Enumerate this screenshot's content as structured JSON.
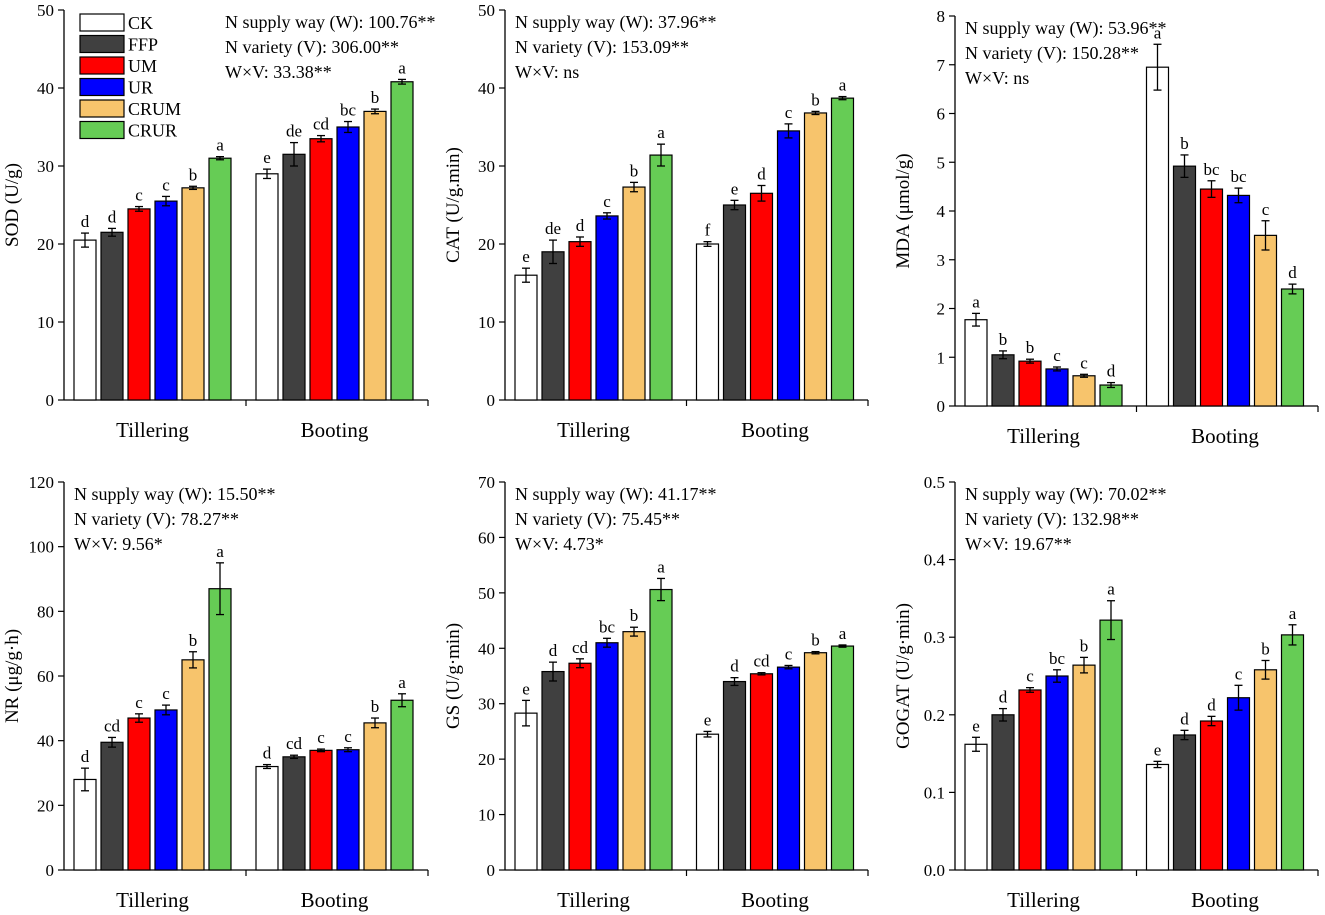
{
  "colors": {
    "CK": "#ffffff",
    "FFP": "#404040",
    "UM": "#ff0000",
    "UR": "#0000ff",
    "CRUM": "#f7c46c",
    "CRUR": "#66cc55"
  },
  "legend": [
    "CK",
    "FFP",
    "UM",
    "UR",
    "CRUM",
    "CRUR"
  ],
  "chart_data": [
    {
      "type": "bar",
      "id": "sod",
      "ylabel": "SOD (U/g)",
      "ylim": [
        0,
        50
      ],
      "yticks": [
        0,
        10,
        20,
        30,
        40,
        50
      ],
      "categories": [
        "Tillering",
        "Booting"
      ],
      "series": [
        {
          "name": "CK",
          "values": [
            20.5,
            29.0
          ],
          "errors": [
            0.9,
            0.6
          ],
          "letters": [
            "d",
            "e"
          ]
        },
        {
          "name": "FFP",
          "values": [
            21.5,
            31.5
          ],
          "errors": [
            0.5,
            1.5
          ],
          "letters": [
            "d",
            "de"
          ]
        },
        {
          "name": "UM",
          "values": [
            24.5,
            33.5
          ],
          "errors": [
            0.3,
            0.4
          ],
          "letters": [
            "c",
            "cd"
          ]
        },
        {
          "name": "UR",
          "values": [
            25.5,
            35.0
          ],
          "errors": [
            0.6,
            0.7
          ],
          "letters": [
            "c",
            "bc"
          ]
        },
        {
          "name": "CRUM",
          "values": [
            27.2,
            37.0
          ],
          "errors": [
            0.2,
            0.3
          ],
          "letters": [
            "b",
            "b"
          ]
        },
        {
          "name": "CRUR",
          "values": [
            31.0,
            40.8
          ],
          "errors": [
            0.2,
            0.3
          ],
          "letters": [
            "a",
            "a"
          ]
        }
      ],
      "stats": [
        "N supply way (W): 100.76**",
        "N variety (V): 306.00**",
        "W×V: 33.38**"
      ]
    },
    {
      "type": "bar",
      "id": "cat",
      "ylabel": "CAT (U/g.min)",
      "ylim": [
        0,
        50
      ],
      "yticks": [
        0,
        10,
        20,
        30,
        40,
        50
      ],
      "categories": [
        "Tillering",
        "Booting"
      ],
      "series": [
        {
          "name": "CK",
          "values": [
            16.0,
            20.0
          ],
          "errors": [
            0.9,
            0.3
          ],
          "letters": [
            "e",
            "f"
          ]
        },
        {
          "name": "FFP",
          "values": [
            19.0,
            25.0
          ],
          "errors": [
            1.5,
            0.6
          ],
          "letters": [
            "de",
            "e"
          ]
        },
        {
          "name": "UM",
          "values": [
            20.3,
            26.5
          ],
          "errors": [
            0.6,
            1.0
          ],
          "letters": [
            "d",
            "d"
          ]
        },
        {
          "name": "UR",
          "values": [
            23.6,
            34.5
          ],
          "errors": [
            0.4,
            0.9
          ],
          "letters": [
            "c",
            "c"
          ]
        },
        {
          "name": "CRUM",
          "values": [
            27.3,
            36.8
          ],
          "errors": [
            0.6,
            0.2
          ],
          "letters": [
            "b",
            "b"
          ]
        },
        {
          "name": "CRUR",
          "values": [
            31.4,
            38.7
          ],
          "errors": [
            1.4,
            0.2
          ],
          "letters": [
            "a",
            "a"
          ]
        }
      ],
      "stats": [
        "N supply way (W): 37.96**",
        "N variety (V): 153.09**",
        "W×V: ns"
      ]
    },
    {
      "type": "bar",
      "id": "mda",
      "ylabel": "MDA (μmol/g)",
      "ylim": [
        0,
        8
      ],
      "yticks": [
        0,
        1,
        2,
        3,
        4,
        5,
        6,
        7,
        8
      ],
      "categories": [
        "Tillering",
        "Booting"
      ],
      "series": [
        {
          "name": "CK",
          "values": [
            1.77,
            6.95
          ],
          "errors": [
            0.13,
            0.47
          ],
          "letters": [
            "a",
            "a"
          ]
        },
        {
          "name": "FFP",
          "values": [
            1.05,
            4.92
          ],
          "errors": [
            0.08,
            0.23
          ],
          "letters": [
            "b",
            "b"
          ]
        },
        {
          "name": "UM",
          "values": [
            0.92,
            4.45
          ],
          "errors": [
            0.04,
            0.17
          ],
          "letters": [
            "b",
            "bc"
          ]
        },
        {
          "name": "UR",
          "values": [
            0.76,
            4.32
          ],
          "errors": [
            0.04,
            0.15
          ],
          "letters": [
            "c",
            "bc"
          ]
        },
        {
          "name": "CRUM",
          "values": [
            0.62,
            3.5
          ],
          "errors": [
            0.03,
            0.3
          ],
          "letters": [
            "c",
            "c"
          ]
        },
        {
          "name": "CRUR",
          "values": [
            0.43,
            2.4
          ],
          "errors": [
            0.05,
            0.1
          ],
          "letters": [
            "d",
            "d"
          ]
        }
      ],
      "stats": [
        "N supply way (W): 53.96**",
        "N variety (V): 150.28**",
        "W×V: ns"
      ]
    },
    {
      "type": "bar",
      "id": "nr",
      "ylabel": "NR (μg/g·h)",
      "ylim": [
        0,
        120
      ],
      "yticks": [
        0,
        20,
        40,
        60,
        80,
        100,
        120
      ],
      "categories": [
        "Tillering",
        "Booting"
      ],
      "series": [
        {
          "name": "CK",
          "values": [
            28.0,
            32.0
          ],
          "errors": [
            3.5,
            0.6
          ],
          "letters": [
            "d",
            "d"
          ]
        },
        {
          "name": "FFP",
          "values": [
            39.5,
            35.0
          ],
          "errors": [
            1.5,
            0.5
          ],
          "letters": [
            "cd",
            "cd"
          ]
        },
        {
          "name": "UM",
          "values": [
            47.0,
            37.0
          ],
          "errors": [
            1.3,
            0.4
          ],
          "letters": [
            "c",
            "c"
          ]
        },
        {
          "name": "UR",
          "values": [
            49.5,
            37.2
          ],
          "errors": [
            1.5,
            0.6
          ],
          "letters": [
            "c",
            "c"
          ]
        },
        {
          "name": "CRUM",
          "values": [
            65.0,
            45.5
          ],
          "errors": [
            2.5,
            1.5
          ],
          "letters": [
            "b",
            "b"
          ]
        },
        {
          "name": "CRUR",
          "values": [
            87.0,
            52.5
          ],
          "errors": [
            8.0,
            2.0
          ],
          "letters": [
            "a",
            "a"
          ]
        }
      ],
      "stats": [
        "N supply way (W): 15.50**",
        "N variety (V): 78.27**",
        "W×V: 9.56*"
      ]
    },
    {
      "type": "bar",
      "id": "gs",
      "ylabel": "GS (U/g·min)",
      "ylim": [
        0,
        70
      ],
      "yticks": [
        0,
        10,
        20,
        30,
        40,
        50,
        60,
        70
      ],
      "categories": [
        "Tillering",
        "Booting"
      ],
      "series": [
        {
          "name": "CK",
          "values": [
            28.3,
            24.5
          ],
          "errors": [
            2.3,
            0.5
          ],
          "letters": [
            "e",
            "e"
          ]
        },
        {
          "name": "FFP",
          "values": [
            35.8,
            34.0
          ],
          "errors": [
            1.7,
            0.7
          ],
          "letters": [
            "d",
            "d"
          ]
        },
        {
          "name": "UM",
          "values": [
            37.3,
            35.4
          ],
          "errors": [
            0.8,
            0.2
          ],
          "letters": [
            "cd",
            "cd"
          ]
        },
        {
          "name": "UR",
          "values": [
            41.0,
            36.6
          ],
          "errors": [
            0.8,
            0.3
          ],
          "letters": [
            "bc",
            "c"
          ]
        },
        {
          "name": "CRUM",
          "values": [
            43.0,
            39.2
          ],
          "errors": [
            0.8,
            0.2
          ],
          "letters": [
            "b",
            "b"
          ]
        },
        {
          "name": "CRUR",
          "values": [
            50.6,
            40.4
          ],
          "errors": [
            2.0,
            0.2
          ],
          "letters": [
            "a",
            "a"
          ]
        }
      ],
      "stats": [
        "N supply way (W): 41.17**",
        "N variety (V): 75.45**",
        "W×V: 4.73*"
      ]
    },
    {
      "type": "bar",
      "id": "gogat",
      "ylabel": "GOGAT (U/g·min)",
      "ylim": [
        0,
        0.5
      ],
      "yticks": [
        0.0,
        0.1,
        0.2,
        0.3,
        0.4,
        0.5
      ],
      "ytick_labels": [
        "0.0",
        "0.1",
        "0.2",
        "0.3",
        "0.4",
        "0.5"
      ],
      "categories": [
        "Tillering",
        "Booting"
      ],
      "series": [
        {
          "name": "CK",
          "values": [
            0.162,
            0.136
          ],
          "errors": [
            0.009,
            0.004
          ],
          "letters": [
            "e",
            "e"
          ]
        },
        {
          "name": "FFP",
          "values": [
            0.2,
            0.174
          ],
          "errors": [
            0.008,
            0.006
          ],
          "letters": [
            "d",
            "d"
          ]
        },
        {
          "name": "UM",
          "values": [
            0.232,
            0.192
          ],
          "errors": [
            0.003,
            0.006
          ],
          "letters": [
            "c",
            "d"
          ]
        },
        {
          "name": "UR",
          "values": [
            0.25,
            0.222
          ],
          "errors": [
            0.008,
            0.016
          ],
          "letters": [
            "bc",
            "c"
          ]
        },
        {
          "name": "CRUM",
          "values": [
            0.264,
            0.258
          ],
          "errors": [
            0.01,
            0.012
          ],
          "letters": [
            "b",
            "b"
          ]
        },
        {
          "name": "CRUR",
          "values": [
            0.322,
            0.303
          ],
          "errors": [
            0.025,
            0.013
          ],
          "letters": [
            "a",
            "a"
          ]
        }
      ],
      "stats": [
        "N supply way (W): 70.02**",
        "N variety (V): 132.98**",
        "W×V: 19.67**"
      ]
    }
  ]
}
